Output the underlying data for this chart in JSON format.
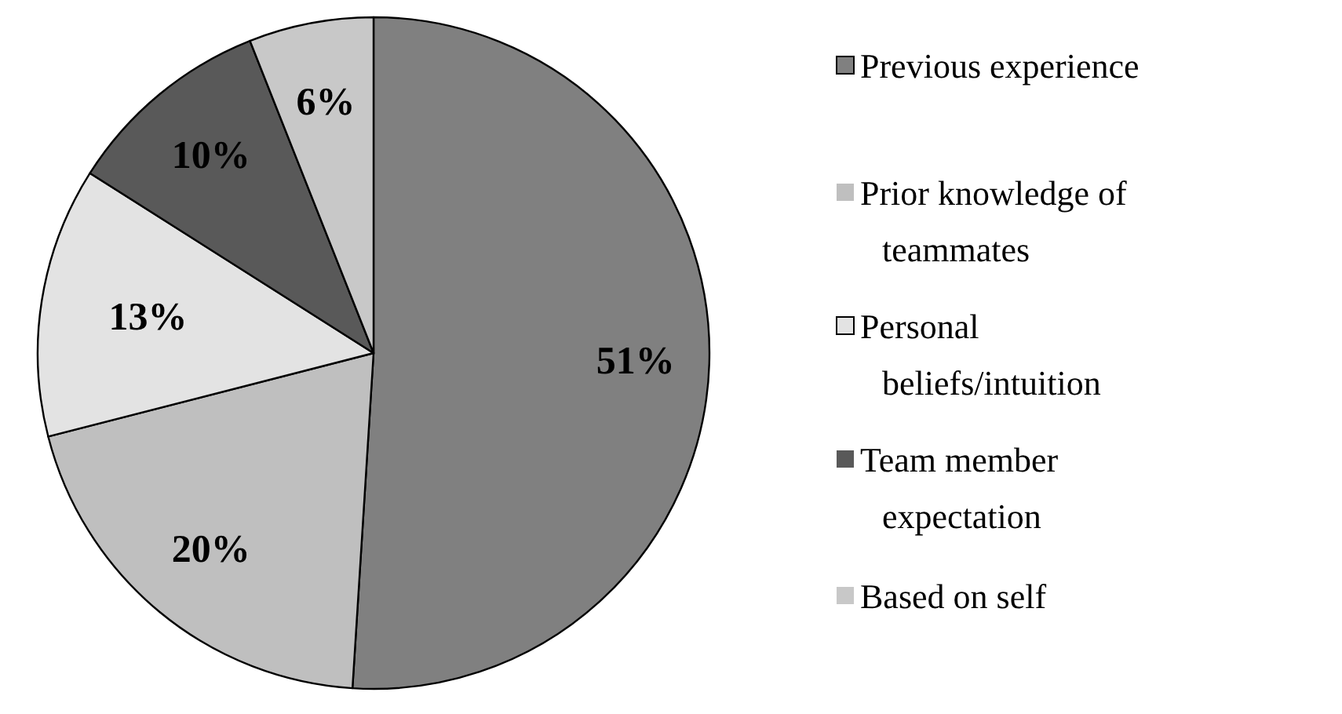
{
  "chart_data": {
    "type": "pie",
    "categories": [
      "Previous experience",
      "Prior knowledge of teammates",
      "Personal beliefs/intuition",
      "Team member expectation",
      "Based on self"
    ],
    "values": [
      51,
      20,
      13,
      10,
      6
    ],
    "colors": [
      "#808080",
      "#bfbfbf",
      "#e3e3e3",
      "#595959",
      "#c8c8c8"
    ],
    "value_labels": [
      "51%",
      "20%",
      "13%",
      "10%",
      "6%"
    ],
    "legend": "right"
  }
}
